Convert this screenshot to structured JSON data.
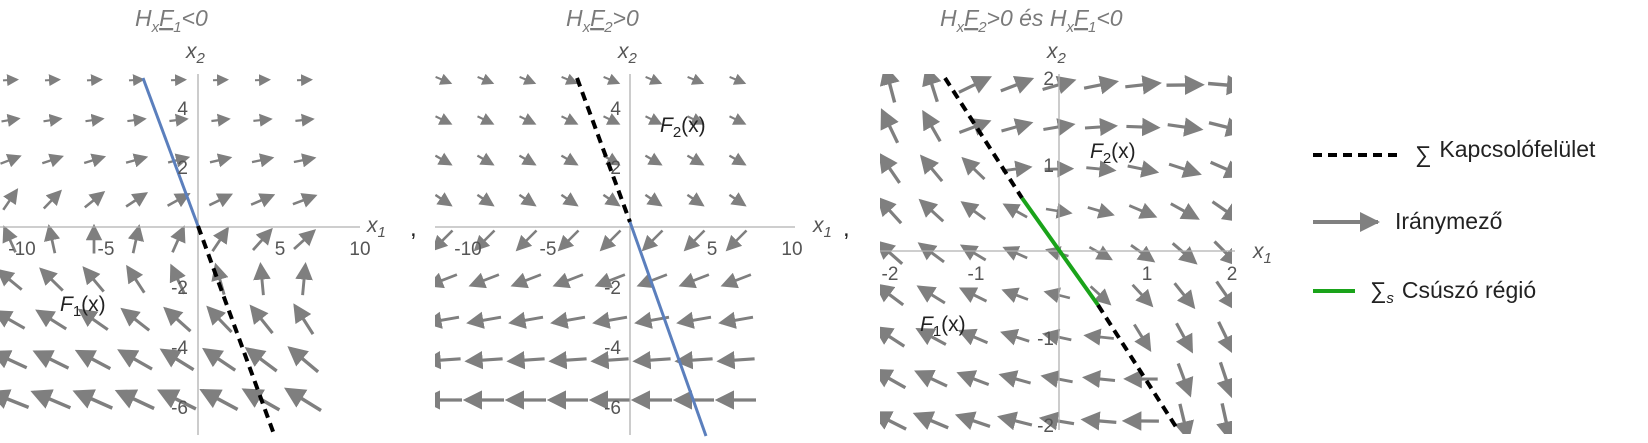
{
  "panels": [
    {
      "title": {
        "pre": "H",
        "sub1": "x",
        "f": "F",
        "sub2": "1",
        "rel": "<0"
      },
      "x_label": "x",
      "x_sub": "1",
      "y_label": "x",
      "y_sub": "2",
      "x_ticks": [
        "-10",
        "-5",
        "5",
        "10"
      ],
      "y_ticks": [
        "4",
        "2",
        "-2",
        "-4",
        "-6"
      ],
      "region_labels": [
        {
          "name": "F",
          "sub": "1",
          "arg": "(x)"
        }
      ],
      "separator": ","
    },
    {
      "title": {
        "pre": "H",
        "sub1": "x",
        "f": "F",
        "sub2": "2",
        "rel": ">0"
      },
      "x_label": "x",
      "x_sub": "1",
      "y_label": "x",
      "y_sub": "2",
      "x_ticks": [
        "-10",
        "-5",
        "5",
        "10"
      ],
      "y_ticks": [
        "4",
        "2",
        "-2",
        "-4",
        "-6"
      ],
      "region_labels": [
        {
          "name": "F",
          "sub": "2",
          "arg": "(x)"
        }
      ],
      "separator": ","
    },
    {
      "title": {
        "pre": "H",
        "sub1": "x",
        "f": "F",
        "sub2": "2",
        "rel": ">0 és ",
        "pre2": "H",
        "sub3": "x",
        "f2": "F",
        "sub4": "1",
        "rel2": "<0"
      },
      "x_label": "x",
      "x_sub": "1",
      "y_label": "x",
      "y_sub": "2",
      "x_ticks": [
        "-2",
        "-1",
        "1",
        "2"
      ],
      "y_ticks": [
        "2",
        "1",
        "-1",
        "-2"
      ],
      "region_labels": [
        {
          "name": "F",
          "sub": "2",
          "arg": "(x)"
        },
        {
          "name": "F",
          "sub": "1",
          "arg": "(x)"
        }
      ]
    }
  ],
  "legend": {
    "items": [
      {
        "symbol": "∑",
        "sub": "",
        "label": "Kapcsolófelület",
        "style": "dashed",
        "color": "#000000"
      },
      {
        "symbol": "",
        "sub": "",
        "label": "Iránymező",
        "style": "arrow",
        "color": "#808080"
      },
      {
        "symbol": "∑",
        "sub": "s",
        "label": "Csúszó régió",
        "style": "solid",
        "color": "#1aa31a"
      }
    ]
  },
  "colors": {
    "arrows": "#7f7f7f",
    "axes": "#b0b0b0",
    "switching_line": "#000000",
    "flow_line": "#5b7fbd",
    "sliding": "#1aa31a"
  }
}
